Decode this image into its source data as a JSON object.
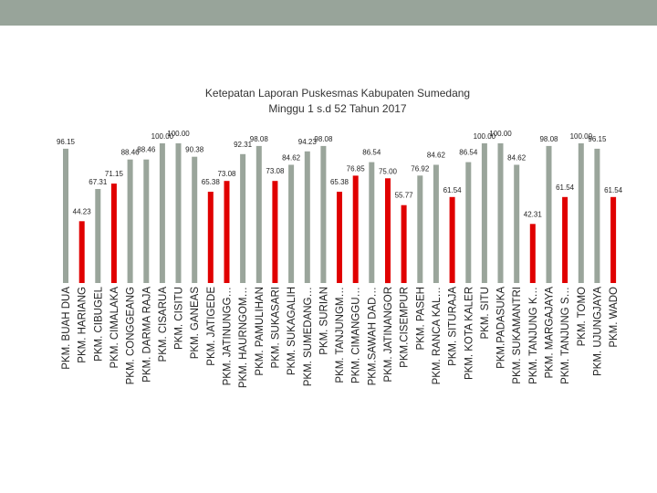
{
  "header": {},
  "colors": {
    "band": "#98a49a",
    "gray": "#9aa59b",
    "red": "#e00000"
  },
  "chart_data": {
    "type": "bar",
    "title_line1": "Ketepatan Laporan Puskesmas Kabupaten Sumedang",
    "title_line2": "Minggu 1 s.d 52 Tahun 2017",
    "ylim": [
      0,
      100
    ],
    "categories": [
      "PKM. BUAH DUA",
      "PKM. HARIANG",
      "PKM. CIBUGEL",
      "PKM. CIMALAKA",
      "PKM. CONGGEANG",
      "PKM. DARMA RAJA",
      "PKM. CISARUA",
      "PKM. CISITU",
      "PKM. GANEAS",
      "PKM. JATIGEDE",
      "PKM. JATINUNGG…",
      "PKM. HAURNGOM…",
      "PKM. PAMULIHAN",
      "PKM. SUKASARI",
      "PKM. SUKAGALIH",
      "PKM. SUMEDANG…",
      "PKM. SURIAN",
      "PKM. TANJUNGM…",
      "PKM. CIMANGGU…",
      "PKM.SAWAH DAD…",
      "PKM. JATINANGOR",
      "PKM.CISEMPUR",
      "PKM. PASEH",
      "PKM. RANCA KAL…",
      "PKM. SITURAJA",
      "PKM. KOTA KALER",
      "PKM. SITU",
      "PKM.PADASUKA",
      "PKM. SUKAMANTRI",
      "PKM. TANJUNG K…",
      "PKM. MARGAJAYA",
      "PKM. TANJUNG S…",
      "PKM. TOMO",
      "PKM. UJUNGJAYA",
      "PKM. WADO"
    ],
    "series": [
      {
        "name": "gray",
        "values": [
          96.15,
          null,
          67.31,
          null,
          88.46,
          88.46,
          100.0,
          100.0,
          90.38,
          null,
          null,
          92.31,
          98.08,
          null,
          84.62,
          94.23,
          98.08,
          null,
          null,
          86.54,
          null,
          null,
          76.92,
          84.62,
          null,
          86.54,
          100.0,
          100.0,
          84.62,
          null,
          98.08,
          null,
          100.0,
          96.15,
          null
        ]
      },
      {
        "name": "red",
        "values": [
          null,
          44.23,
          null,
          71.15,
          null,
          null,
          null,
          null,
          null,
          65.38,
          73.08,
          null,
          null,
          73.08,
          null,
          null,
          null,
          65.38,
          76.85,
          null,
          75.0,
          55.77,
          null,
          null,
          61.54,
          null,
          null,
          null,
          null,
          42.31,
          null,
          61.54,
          null,
          null,
          61.54
        ]
      }
    ],
    "labels": [
      "96.15",
      "44.23",
      "67.31",
      "71.15",
      "88.46",
      "88.46",
      "100.00",
      "100.00",
      "90.38",
      "65.38",
      "73.08",
      "92.31",
      "98.08",
      "73.08",
      "84.62",
      "94.23",
      "98.08",
      "65.38",
      "76.85",
      "86.54",
      "75.00",
      "55.77",
      "76.92",
      "84.62",
      "61.54",
      "86.54",
      "100.00",
      "100.00",
      "84.62",
      "42.31",
      "98.08",
      "61.54",
      "100.00",
      "96.15",
      "61.54"
    ]
  }
}
